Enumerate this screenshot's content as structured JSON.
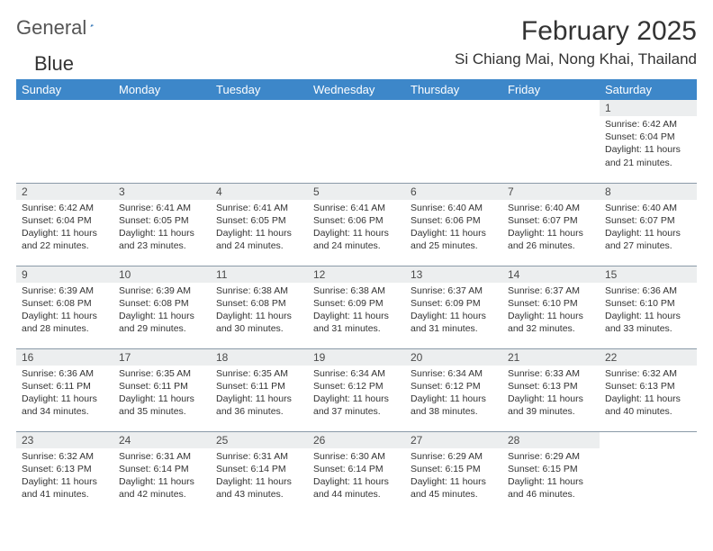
{
  "brand": {
    "word1": "General",
    "word2": "Blue"
  },
  "title": {
    "month": "February 2025",
    "location": "Si Chiang Mai, Nong Khai, Thailand"
  },
  "colors": {
    "header_bg": "#3d87c9",
    "header_fg": "#ffffff",
    "daynum_bg": "#eceeef",
    "border": "#8a9aa8",
    "logo_blue": "#2b6fb3"
  },
  "weekdays": [
    "Sunday",
    "Monday",
    "Tuesday",
    "Wednesday",
    "Thursday",
    "Friday",
    "Saturday"
  ],
  "weeks": [
    [
      {
        "n": "",
        "sr": "",
        "ss": "",
        "dl": ""
      },
      {
        "n": "",
        "sr": "",
        "ss": "",
        "dl": ""
      },
      {
        "n": "",
        "sr": "",
        "ss": "",
        "dl": ""
      },
      {
        "n": "",
        "sr": "",
        "ss": "",
        "dl": ""
      },
      {
        "n": "",
        "sr": "",
        "ss": "",
        "dl": ""
      },
      {
        "n": "",
        "sr": "",
        "ss": "",
        "dl": ""
      },
      {
        "n": "1",
        "sr": "Sunrise: 6:42 AM",
        "ss": "Sunset: 6:04 PM",
        "dl": "Daylight: 11 hours and 21 minutes."
      }
    ],
    [
      {
        "n": "2",
        "sr": "Sunrise: 6:42 AM",
        "ss": "Sunset: 6:04 PM",
        "dl": "Daylight: 11 hours and 22 minutes."
      },
      {
        "n": "3",
        "sr": "Sunrise: 6:41 AM",
        "ss": "Sunset: 6:05 PM",
        "dl": "Daylight: 11 hours and 23 minutes."
      },
      {
        "n": "4",
        "sr": "Sunrise: 6:41 AM",
        "ss": "Sunset: 6:05 PM",
        "dl": "Daylight: 11 hours and 24 minutes."
      },
      {
        "n": "5",
        "sr": "Sunrise: 6:41 AM",
        "ss": "Sunset: 6:06 PM",
        "dl": "Daylight: 11 hours and 24 minutes."
      },
      {
        "n": "6",
        "sr": "Sunrise: 6:40 AM",
        "ss": "Sunset: 6:06 PM",
        "dl": "Daylight: 11 hours and 25 minutes."
      },
      {
        "n": "7",
        "sr": "Sunrise: 6:40 AM",
        "ss": "Sunset: 6:07 PM",
        "dl": "Daylight: 11 hours and 26 minutes."
      },
      {
        "n": "8",
        "sr": "Sunrise: 6:40 AM",
        "ss": "Sunset: 6:07 PM",
        "dl": "Daylight: 11 hours and 27 minutes."
      }
    ],
    [
      {
        "n": "9",
        "sr": "Sunrise: 6:39 AM",
        "ss": "Sunset: 6:08 PM",
        "dl": "Daylight: 11 hours and 28 minutes."
      },
      {
        "n": "10",
        "sr": "Sunrise: 6:39 AM",
        "ss": "Sunset: 6:08 PM",
        "dl": "Daylight: 11 hours and 29 minutes."
      },
      {
        "n": "11",
        "sr": "Sunrise: 6:38 AM",
        "ss": "Sunset: 6:08 PM",
        "dl": "Daylight: 11 hours and 30 minutes."
      },
      {
        "n": "12",
        "sr": "Sunrise: 6:38 AM",
        "ss": "Sunset: 6:09 PM",
        "dl": "Daylight: 11 hours and 31 minutes."
      },
      {
        "n": "13",
        "sr": "Sunrise: 6:37 AM",
        "ss": "Sunset: 6:09 PM",
        "dl": "Daylight: 11 hours and 31 minutes."
      },
      {
        "n": "14",
        "sr": "Sunrise: 6:37 AM",
        "ss": "Sunset: 6:10 PM",
        "dl": "Daylight: 11 hours and 32 minutes."
      },
      {
        "n": "15",
        "sr": "Sunrise: 6:36 AM",
        "ss": "Sunset: 6:10 PM",
        "dl": "Daylight: 11 hours and 33 minutes."
      }
    ],
    [
      {
        "n": "16",
        "sr": "Sunrise: 6:36 AM",
        "ss": "Sunset: 6:11 PM",
        "dl": "Daylight: 11 hours and 34 minutes."
      },
      {
        "n": "17",
        "sr": "Sunrise: 6:35 AM",
        "ss": "Sunset: 6:11 PM",
        "dl": "Daylight: 11 hours and 35 minutes."
      },
      {
        "n": "18",
        "sr": "Sunrise: 6:35 AM",
        "ss": "Sunset: 6:11 PM",
        "dl": "Daylight: 11 hours and 36 minutes."
      },
      {
        "n": "19",
        "sr": "Sunrise: 6:34 AM",
        "ss": "Sunset: 6:12 PM",
        "dl": "Daylight: 11 hours and 37 minutes."
      },
      {
        "n": "20",
        "sr": "Sunrise: 6:34 AM",
        "ss": "Sunset: 6:12 PM",
        "dl": "Daylight: 11 hours and 38 minutes."
      },
      {
        "n": "21",
        "sr": "Sunrise: 6:33 AM",
        "ss": "Sunset: 6:13 PM",
        "dl": "Daylight: 11 hours and 39 minutes."
      },
      {
        "n": "22",
        "sr": "Sunrise: 6:32 AM",
        "ss": "Sunset: 6:13 PM",
        "dl": "Daylight: 11 hours and 40 minutes."
      }
    ],
    [
      {
        "n": "23",
        "sr": "Sunrise: 6:32 AM",
        "ss": "Sunset: 6:13 PM",
        "dl": "Daylight: 11 hours and 41 minutes."
      },
      {
        "n": "24",
        "sr": "Sunrise: 6:31 AM",
        "ss": "Sunset: 6:14 PM",
        "dl": "Daylight: 11 hours and 42 minutes."
      },
      {
        "n": "25",
        "sr": "Sunrise: 6:31 AM",
        "ss": "Sunset: 6:14 PM",
        "dl": "Daylight: 11 hours and 43 minutes."
      },
      {
        "n": "26",
        "sr": "Sunrise: 6:30 AM",
        "ss": "Sunset: 6:14 PM",
        "dl": "Daylight: 11 hours and 44 minutes."
      },
      {
        "n": "27",
        "sr": "Sunrise: 6:29 AM",
        "ss": "Sunset: 6:15 PM",
        "dl": "Daylight: 11 hours and 45 minutes."
      },
      {
        "n": "28",
        "sr": "Sunrise: 6:29 AM",
        "ss": "Sunset: 6:15 PM",
        "dl": "Daylight: 11 hours and 46 minutes."
      },
      {
        "n": "",
        "sr": "",
        "ss": "",
        "dl": ""
      }
    ]
  ]
}
